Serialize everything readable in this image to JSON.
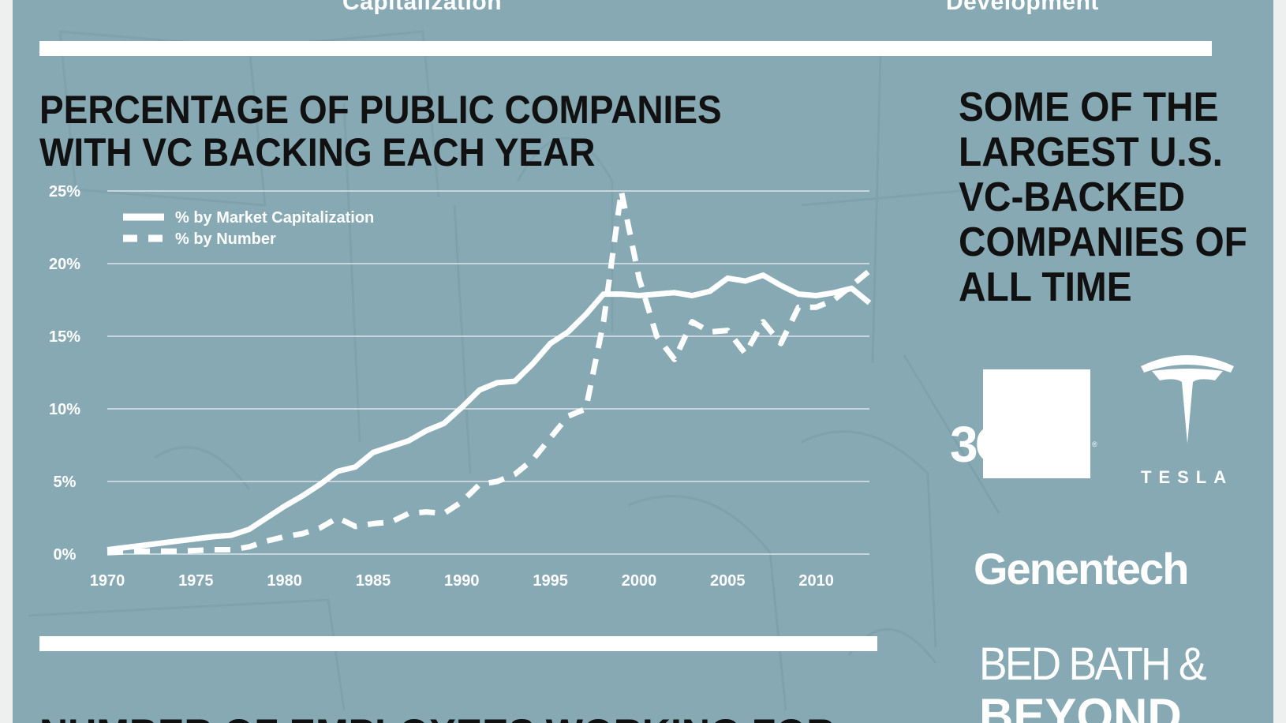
{
  "header": {
    "left_heading": "Capitalization",
    "right_heading": "Development"
  },
  "main": {
    "title": "PERCENTAGE OF PUBLIC COMPANIES WITH VC BACKING EACH YEAR",
    "bottom_title": "NUMBER OF EMPLOYEES WORKING FOR"
  },
  "sidebar": {
    "title": "SOME OF THE LARGEST U.S. VC-BACKED COMPANIES OF ALL TIME",
    "logos": {
      "com3": "3Com",
      "tesla": "TESLA",
      "genentech": "Genentech",
      "bbb_line1": "BED BATH &",
      "bbb_line2": "BEYOND"
    }
  },
  "colors": {
    "panel": "#86a9b4",
    "line": "#ffffff",
    "text_dark": "#111111"
  },
  "chart_data": {
    "type": "line",
    "title": "PERCENTAGE OF PUBLIC COMPANIES WITH VC BACKING EACH YEAR",
    "xlabel": "",
    "ylabel": "",
    "xlim": [
      1970,
      2013
    ],
    "ylim": [
      0,
      25
    ],
    "x_ticks": [
      "1970",
      "1975",
      "1980",
      "1985",
      "1990",
      "1995",
      "2000",
      "2005",
      "2010"
    ],
    "y_ticks": [
      "0%",
      "5%",
      "10%",
      "15%",
      "20%",
      "25%"
    ],
    "grid": true,
    "legend_position": "top-left",
    "series": [
      {
        "name": "% by Market Capitalization",
        "style": "solid",
        "points": [
          [
            1970,
            0.3
          ],
          [
            1972,
            0.6
          ],
          [
            1974,
            0.9
          ],
          [
            1976,
            1.2
          ],
          [
            1977,
            1.3
          ],
          [
            1978,
            1.7
          ],
          [
            1979,
            2.5
          ],
          [
            1980,
            3.3
          ],
          [
            1981,
            4.0
          ],
          [
            1982,
            4.8
          ],
          [
            1983,
            5.7
          ],
          [
            1984,
            6.0
          ],
          [
            1985,
            7.0
          ],
          [
            1986,
            7.4
          ],
          [
            1987,
            7.8
          ],
          [
            1988,
            8.5
          ],
          [
            1989,
            9.0
          ],
          [
            1990,
            10.1
          ],
          [
            1991,
            11.3
          ],
          [
            1992,
            11.8
          ],
          [
            1993,
            11.9
          ],
          [
            1994,
            13.1
          ],
          [
            1995,
            14.5
          ],
          [
            1996,
            15.3
          ],
          [
            1997,
            16.5
          ],
          [
            1998,
            17.9
          ],
          [
            1999,
            17.9
          ],
          [
            2000,
            17.8
          ],
          [
            2001,
            17.9
          ],
          [
            2002,
            18.0
          ],
          [
            2003,
            17.8
          ],
          [
            2004,
            18.1
          ],
          [
            2005,
            19.0
          ],
          [
            2006,
            18.8
          ],
          [
            2007,
            19.2
          ],
          [
            2008,
            18.5
          ],
          [
            2009,
            17.9
          ],
          [
            2010,
            17.8
          ],
          [
            2011,
            18.0
          ],
          [
            2012,
            18.3
          ],
          [
            2013,
            17.3
          ]
        ]
      },
      {
        "name": "% by Number",
        "style": "dashed",
        "points": [
          [
            1970,
            0.1
          ],
          [
            1972,
            0.2
          ],
          [
            1974,
            0.2
          ],
          [
            1976,
            0.3
          ],
          [
            1977,
            0.3
          ],
          [
            1978,
            0.5
          ],
          [
            1979,
            0.9
          ],
          [
            1980,
            1.2
          ],
          [
            1981,
            1.4
          ],
          [
            1982,
            1.8
          ],
          [
            1983,
            2.5
          ],
          [
            1984,
            1.9
          ],
          [
            1985,
            2.1
          ],
          [
            1986,
            2.2
          ],
          [
            1987,
            2.8
          ],
          [
            1988,
            2.9
          ],
          [
            1989,
            2.8
          ],
          [
            1990,
            3.6
          ],
          [
            1991,
            4.8
          ],
          [
            1992,
            5.0
          ],
          [
            1993,
            5.5
          ],
          [
            1994,
            6.5
          ],
          [
            1995,
            8.0
          ],
          [
            1996,
            9.5
          ],
          [
            1997,
            10.0
          ],
          [
            1998,
            16.0
          ],
          [
            1999,
            25.0
          ],
          [
            2000,
            19.0
          ],
          [
            2001,
            15.0
          ],
          [
            2002,
            13.4
          ],
          [
            2003,
            16.0
          ],
          [
            2004,
            15.3
          ],
          [
            2005,
            15.4
          ],
          [
            2006,
            13.8
          ],
          [
            2007,
            16.0
          ],
          [
            2008,
            14.5
          ],
          [
            2009,
            17.0
          ],
          [
            2010,
            17.0
          ],
          [
            2011,
            17.5
          ],
          [
            2012,
            18.5
          ],
          [
            2013,
            19.5
          ]
        ]
      }
    ]
  }
}
